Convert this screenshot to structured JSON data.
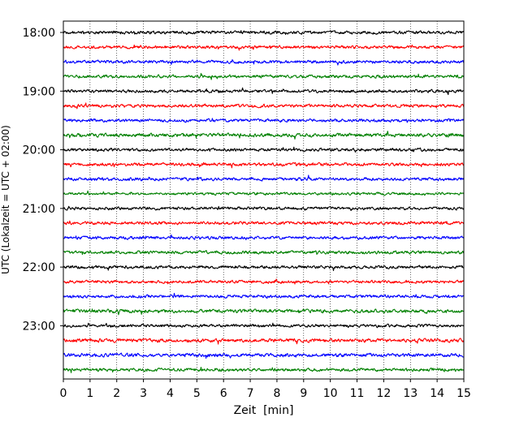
{
  "chart_data": {
    "type": "line",
    "title": "",
    "xlabel": "Zeit  [min]",
    "ylabel": "UTC (Lokalzeit = UTC + 02:00)",
    "xlim": [
      0,
      15
    ],
    "x_ticks": [
      "0",
      "1",
      "2",
      "3",
      "4",
      "5",
      "6",
      "7",
      "8",
      "9",
      "10",
      "11",
      "12",
      "13",
      "14",
      "15"
    ],
    "y_ticks": [
      "18:00",
      "19:00",
      "20:00",
      "21:00",
      "22:00",
      "23:00"
    ],
    "grid": "vertical dotted lines at each minute",
    "trace_interval_minutes": 15,
    "series": [
      {
        "start": "18:00",
        "color": "#000000",
        "amplitude": 0.12
      },
      {
        "start": "18:15",
        "color": "#ff0000",
        "amplitude": 0.12
      },
      {
        "start": "18:30",
        "color": "#0000ff",
        "amplitude": 0.12
      },
      {
        "start": "18:45",
        "color": "#008000",
        "amplitude": 0.12
      },
      {
        "start": "19:00",
        "color": "#000000",
        "amplitude": 0.12
      },
      {
        "start": "19:15",
        "color": "#ff0000",
        "amplitude": 0.12
      },
      {
        "start": "19:30",
        "color": "#0000ff",
        "amplitude": 0.12
      },
      {
        "start": "19:45",
        "color": "#008000",
        "amplitude": 0.14
      },
      {
        "start": "20:00",
        "color": "#000000",
        "amplitude": 0.12
      },
      {
        "start": "20:15",
        "color": "#ff0000",
        "amplitude": 0.12
      },
      {
        "start": "20:30",
        "color": "#0000ff",
        "amplitude": 0.12
      },
      {
        "start": "20:45",
        "color": "#008000",
        "amplitude": 0.1
      },
      {
        "start": "21:00",
        "color": "#000000",
        "amplitude": 0.12
      },
      {
        "start": "21:15",
        "color": "#ff0000",
        "amplitude": 0.12
      },
      {
        "start": "21:30",
        "color": "#0000ff",
        "amplitude": 0.12
      },
      {
        "start": "21:45",
        "color": "#008000",
        "amplitude": 0.12
      },
      {
        "start": "22:00",
        "color": "#000000",
        "amplitude": 0.12
      },
      {
        "start": "22:15",
        "color": "#ff0000",
        "amplitude": 0.12
      },
      {
        "start": "22:30",
        "color": "#0000ff",
        "amplitude": 0.12
      },
      {
        "start": "22:45",
        "color": "#008000",
        "amplitude": 0.14
      },
      {
        "start": "23:00",
        "color": "#000000",
        "amplitude": 0.12
      },
      {
        "start": "23:15",
        "color": "#ff0000",
        "amplitude": 0.14
      },
      {
        "start": "23:30",
        "color": "#0000ff",
        "amplitude": 0.14
      },
      {
        "start": "23:45",
        "color": "#008000",
        "amplitude": 0.12
      }
    ]
  }
}
